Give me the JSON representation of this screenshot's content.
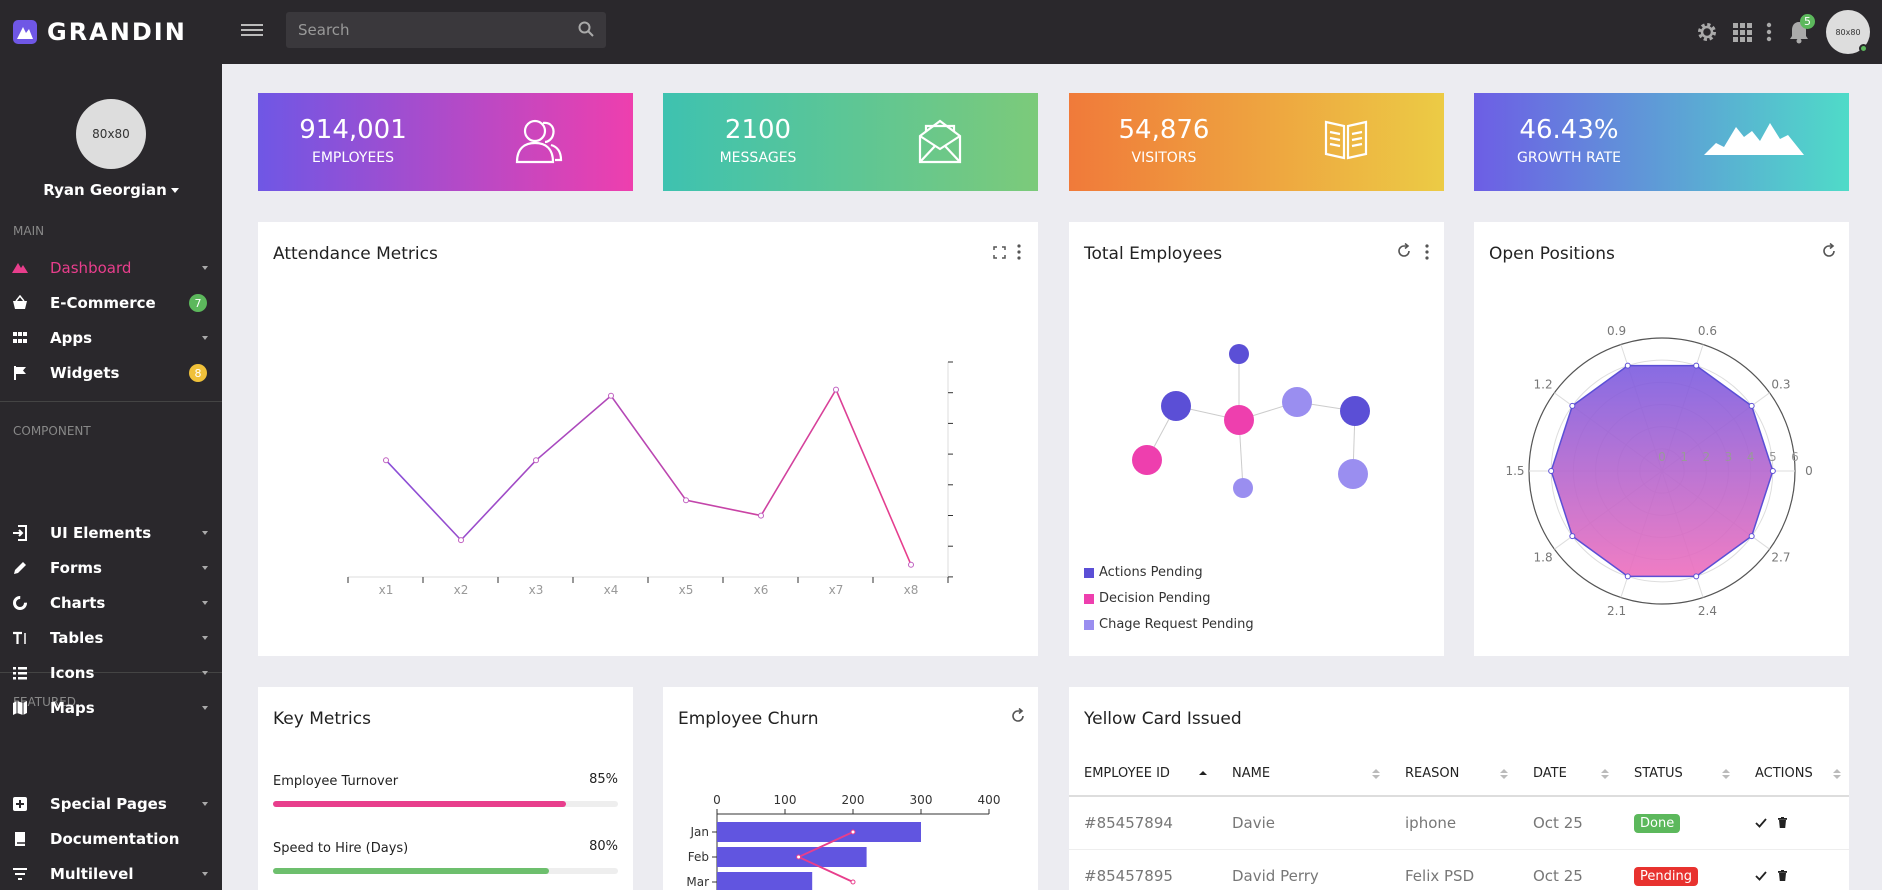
{
  "app": {
    "brand": "GRANDIN"
  },
  "search": {
    "placeholder": "Search"
  },
  "notifications": {
    "count": "5"
  },
  "avatar": {
    "top_text": "80x80",
    "side_text": "80x80"
  },
  "user": {
    "name": "Ryan Georgian"
  },
  "sidebar": {
    "sections": [
      "MAIN",
      "COMPONENT",
      "FEATURED"
    ],
    "items": [
      {
        "label": "Dashboard",
        "icon": "triangles-icon",
        "active": true
      },
      {
        "label": "E-Commerce",
        "icon": "basket-icon",
        "badge": "7",
        "badge_color": "#5cb85c"
      },
      {
        "label": "Apps",
        "icon": "grid-icon"
      },
      {
        "label": "Widgets",
        "icon": "flag-icon",
        "badge": "8",
        "badge_color": "#f0c13a"
      },
      {
        "label": "UI Elements",
        "icon": "sign-in-icon"
      },
      {
        "label": "Forms",
        "icon": "pencil-icon"
      },
      {
        "label": "Charts",
        "icon": "donut-icon"
      },
      {
        "label": "Tables",
        "icon": "text-height-icon"
      },
      {
        "label": "Icons",
        "icon": "list-icon"
      },
      {
        "label": "Maps",
        "icon": "map-icon"
      },
      {
        "label": "Special Pages",
        "icon": "plus-square-icon"
      },
      {
        "label": "Documentation",
        "icon": "book-icon"
      },
      {
        "label": "Multilevel",
        "icon": "filter-icon"
      }
    ]
  },
  "stats": [
    {
      "value": "914,001",
      "label": "EMPLOYEES",
      "icon": "users-icon",
      "from": "#6f57e5",
      "to": "#ee3fae"
    },
    {
      "value": "2100",
      "label": "MESSAGES",
      "icon": "open-envelope-icon",
      "from": "#3ec2b0",
      "to": "#7cca7a"
    },
    {
      "value": "54,876",
      "label": "VISITORS",
      "icon": "open-book-icon",
      "from": "#f07a3a",
      "to": "#eccb45"
    },
    {
      "value": "46.43%",
      "label": "GROWTH RATE",
      "icon": "mountains-icon",
      "from": "#6d5ee5",
      "to": "#4fdbc8"
    }
  ],
  "attendance": {
    "title": "Attendance Metrics",
    "chart_data": {
      "type": "line",
      "categories": [
        "x1",
        "x2",
        "x3",
        "x4",
        "x5",
        "x6",
        "x7",
        "x8"
      ],
      "values": [
        3.8,
        1.2,
        3.8,
        5.9,
        2.5,
        2.0,
        6.1,
        0.4
      ],
      "ylim": [
        0,
        7
      ],
      "yticks_labeled": false,
      "colors": [
        "#8a4fd8",
        "#e83e8c"
      ]
    }
  },
  "total_employees": {
    "title": "Total Employees",
    "legend": [
      {
        "label": "Actions Pending",
        "color": "#5b4fd6"
      },
      {
        "label": "Decision Pending",
        "color": "#ee3fae"
      },
      {
        "label": "Chage Request Pending",
        "color": "#9a8ef0"
      }
    ]
  },
  "open_positions": {
    "title": "Open Positions",
    "chart_data": {
      "type": "radar",
      "angle_labels": [
        "0",
        "0.3",
        "0.6",
        "0.9",
        "1.2",
        "1.5",
        "1.8",
        "2.1",
        "2.4",
        "2.7"
      ],
      "radial_ticks": [
        "0",
        "1",
        "2",
        "3",
        "4",
        "5",
        "6"
      ],
      "values": [
        5,
        5,
        5,
        5,
        5,
        5,
        5,
        5,
        5,
        5
      ],
      "rmax": 6
    }
  },
  "key_metrics": {
    "title": "Key Metrics",
    "items": [
      {
        "label": "Employee Turnover",
        "pct": "85%",
        "value": 0.85,
        "color": "#e83e8c"
      },
      {
        "label": "Speed to Hire (Days)",
        "pct": "80%",
        "value": 0.8,
        "color": "#6dbf6d"
      }
    ]
  },
  "churn": {
    "title": "Employee Churn",
    "chart_data": {
      "type": "bar",
      "orientation": "horizontal",
      "categories": [
        "Jan",
        "Feb",
        "Mar"
      ],
      "values": [
        300,
        220,
        140
      ],
      "line_values": [
        200,
        120,
        200
      ],
      "xticks": [
        "0",
        "100",
        "200",
        "300",
        "400"
      ],
      "xlim": [
        0,
        400
      ],
      "colors": [
        "#6155e0",
        "#e83e8c"
      ]
    }
  },
  "yellow_card": {
    "title": "Yellow Card Issued",
    "columns": [
      "EMPLOYEE ID",
      "NAME",
      "REASON",
      "DATE",
      "STATUS",
      "ACTIONS"
    ],
    "rows": [
      {
        "id": "#85457894",
        "name": "Davie",
        "reason": "iphone",
        "date": "Oct 25",
        "status": "Done",
        "status_color": "#5cb85c"
      },
      {
        "id": "#85457895",
        "name": "David Perry",
        "reason": "Felix PSD",
        "date": "Oct 25",
        "status": "Pending",
        "status_color": "#e8322f"
      }
    ]
  }
}
